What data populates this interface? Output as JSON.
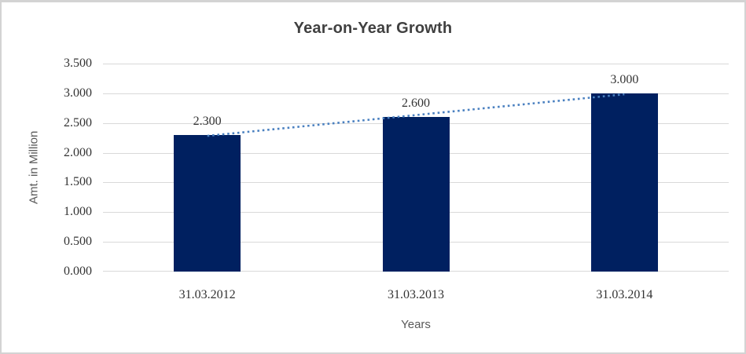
{
  "window": {
    "background": "#ffffff",
    "border_color": "#d3d3d3"
  },
  "chart_data": {
    "type": "bar",
    "title": "Year-on-Year Growth",
    "xlabel": "Years",
    "ylabel": "Amt. in Million",
    "categories": [
      "31.03.2012",
      "31.03.2013",
      "31.03.2014"
    ],
    "values": [
      2.3,
      2.6,
      3.0
    ],
    "data_labels": [
      "2.300",
      "2.600",
      "3.000"
    ],
    "y_tick_values": [
      0,
      0.5,
      1.0,
      1.5,
      2.0,
      2.5,
      3.0,
      3.5
    ],
    "y_tick_labels": [
      "0.000",
      "0.500",
      "1.000",
      "1.500",
      "2.000",
      "2.500",
      "3.000",
      "3.500"
    ],
    "ylim": [
      0,
      3.5
    ],
    "grid": true,
    "legend": "none",
    "trendline": {
      "type": "linear",
      "style": "dotted",
      "color": "#4a80c0"
    },
    "colors": {
      "bar": "#002060",
      "gridline": "#d9d9d9",
      "title": "#404040",
      "tick_label": "#333333",
      "axis_title": "#595959"
    }
  }
}
